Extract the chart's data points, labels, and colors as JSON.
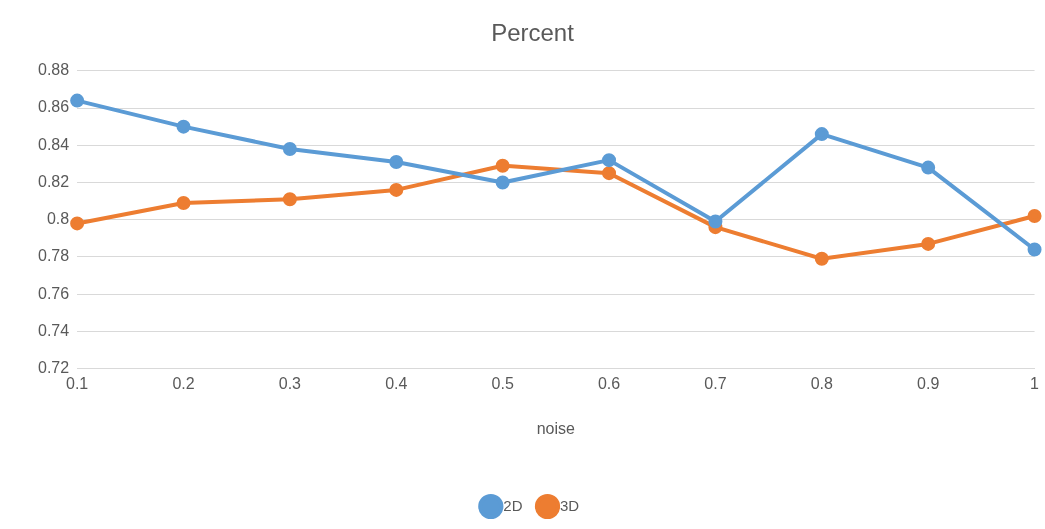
{
  "chart_data": {
    "type": "line",
    "title": "Percent",
    "xlabel": "noise",
    "categories": [
      "0.1",
      "0.2",
      "0.3",
      "0.4",
      "0.5",
      "0.6",
      "0.7",
      "0.8",
      "0.9",
      "1"
    ],
    "series": [
      {
        "name": "2D",
        "color": "#5b9bd5",
        "values": [
          0.864,
          0.85,
          0.838,
          0.831,
          0.82,
          0.832,
          0.799,
          0.846,
          0.828,
          0.784
        ]
      },
      {
        "name": "3D",
        "color": "#ed7d31",
        "values": [
          0.798,
          0.809,
          0.811,
          0.816,
          0.829,
          0.825,
          0.796,
          0.779,
          0.787,
          0.802
        ]
      }
    ],
    "ylim": [
      0.72,
      0.88
    ],
    "yticks": [
      0.72,
      0.74,
      0.76,
      0.78,
      0.8,
      0.82,
      0.84,
      0.86,
      0.88
    ],
    "grid": "y",
    "legend": "bottom",
    "marker": "circle",
    "line_style": "solid"
  }
}
